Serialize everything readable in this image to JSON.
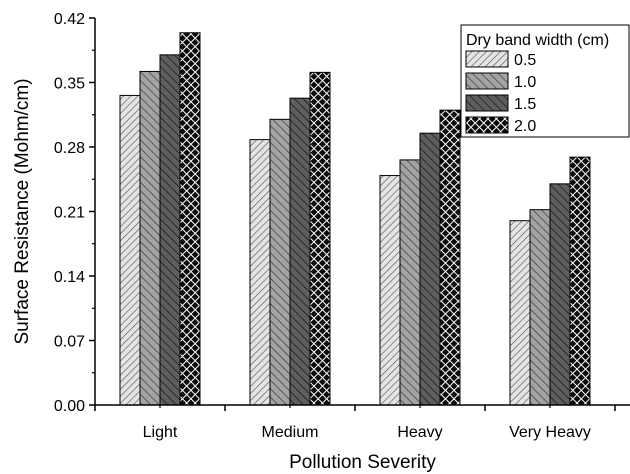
{
  "chart_data": {
    "type": "bar",
    "title": "",
    "xlabel": "Pollution Severity",
    "ylabel": "Surface Resistance (Mohm/cm)",
    "categories": [
      "Light",
      "Medium",
      "Heavy",
      "Very Heavy"
    ],
    "ylim": [
      0,
      0.42
    ],
    "yticks": [
      "0.00",
      "0.07",
      "0.14",
      "0.21",
      "0.28",
      "0.35",
      "0.42"
    ],
    "grid": false,
    "legend": {
      "title": "Dry band width (cm)",
      "placement": "top-right"
    },
    "series": [
      {
        "name": "0.5",
        "values": [
          0.336,
          0.288,
          0.249,
          0.2
        ],
        "pattern": "fine-diagonal-light",
        "color": "#c8c8c8"
      },
      {
        "name": "1.0",
        "values": [
          0.362,
          0.31,
          0.266,
          0.212
        ],
        "pattern": "back-diagonal-medium",
        "color": "#909090"
      },
      {
        "name": "1.5",
        "values": [
          0.38,
          0.333,
          0.295,
          0.24
        ],
        "pattern": "back-diagonal-dark",
        "color": "#585858"
      },
      {
        "name": "2.0",
        "values": [
          0.404,
          0.361,
          0.32,
          0.269
        ],
        "pattern": "crosshatch-black",
        "color": "#111111"
      }
    ]
  }
}
